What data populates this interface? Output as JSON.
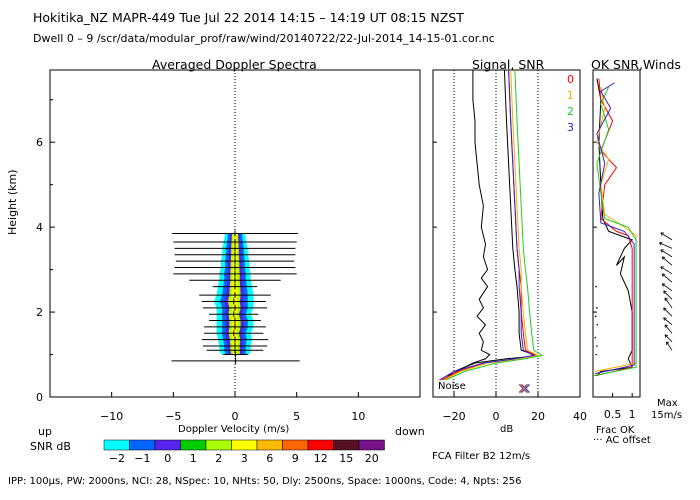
{
  "header": {
    "line1": "Hokitika_NZ   MAPR-449   Tue Jul 22 2014 14:15 – 14:19 UT 08:15 NZST",
    "line2": "Dwell   0 –  9    /scr/data/modular_prof/raw/wind/20140722/22-Jul-2014_14-15-01.cor.nc"
  },
  "footer": {
    "params": "IPP: 100µs,  PW: 2000ns,  NCI:  28,  NSpec: 10,  NHts: 50,  Dly: 2500ns,  Space: 1000ns,  Code: 4,  Npts: 256",
    "fca": "FCA Filter B2 12m/s"
  },
  "labels": {
    "up": "up",
    "down": "down",
    "snr_db": "SNR dB",
    "noise": "Noise",
    "frac_ok": "Frac OK",
    "ac_offset": "AC offset",
    "max": "Max",
    "max_speed": "15m/s",
    "ok_title": "OK",
    "snr_winds_title": "SNR,Winds",
    "signal_snr_title": "Signal, SNR",
    "db": "dB"
  },
  "colorbar": {
    "labels": [
      "−2",
      "−1",
      "0",
      "1",
      "2",
      "3",
      "6",
      "9",
      "12",
      "15",
      "20"
    ],
    "colors": [
      "#00ffff",
      "#0066ff",
      "#5522ee",
      "#00cc00",
      "#aaff00",
      "#ffff00",
      "#ffbb00",
      "#ff6600",
      "#ff0000",
      "#551122",
      "#771188"
    ]
  },
  "beam_legend": [
    {
      "label": "0",
      "color": "#ff0000"
    },
    {
      "label": "1",
      "color": "#ffaa00"
    },
    {
      "label": "2",
      "color": "#22cc22"
    },
    {
      "label": "3",
      "color": "#3322cc"
    }
  ],
  "chart_data": [
    {
      "type": "heatmap",
      "title": "Averaged Doppler Spectra",
      "xlabel": "Doppler Velocity (m/s)",
      "ylabel": "Height (km)",
      "xlim": [
        -15,
        15
      ],
      "ylim": [
        0,
        7.7
      ],
      "xticks": [
        -10,
        -5,
        0,
        5,
        10
      ],
      "yticks": [
        0,
        2,
        4,
        6
      ],
      "profile": [
        {
          "h": 0.85,
          "ext": 5.2,
          "w": 0.9,
          "c": 0.05
        },
        {
          "h": 1.0,
          "ext": 1.0,
          "w": 1.0,
          "c": 0.05
        },
        {
          "h": 1.1,
          "ext": 2.3,
          "w": 1.1,
          "c": 0.0
        },
        {
          "h": 1.2,
          "ext": 2.6,
          "w": 1.1,
          "c": 0.0
        },
        {
          "h": 1.35,
          "ext": 2.7,
          "w": 1.2,
          "c": 0.0
        },
        {
          "h": 1.5,
          "ext": 2.4,
          "w": 1.2,
          "c": -0.1
        },
        {
          "h": 1.65,
          "ext": 2.5,
          "w": 1.3,
          "c": 0.0
        },
        {
          "h": 1.8,
          "ext": 2.1,
          "w": 1.3,
          "c": 0.0
        },
        {
          "h": 1.95,
          "ext": 2.0,
          "w": 1.2,
          "c": -0.1
        },
        {
          "h": 2.1,
          "ext": 2.6,
          "w": 1.3,
          "c": 0.0
        },
        {
          "h": 2.25,
          "ext": 2.6,
          "w": 1.4,
          "c": -0.1
        },
        {
          "h": 2.4,
          "ext": 2.9,
          "w": 1.3,
          "c": 0.0
        },
        {
          "h": 2.6,
          "ext": 1.8,
          "w": 1.2,
          "c": 0.0
        },
        {
          "h": 2.75,
          "ext": 3.7,
          "w": 1.1,
          "c": 0.0
        },
        {
          "h": 2.9,
          "ext": 5.0,
          "w": 1.1,
          "c": 0.0
        },
        {
          "h": 3.05,
          "ext": 4.9,
          "w": 1.0,
          "c": 0.0
        },
        {
          "h": 3.2,
          "ext": 4.8,
          "w": 1.0,
          "c": 0.0
        },
        {
          "h": 3.35,
          "ext": 4.9,
          "w": 0.9,
          "c": 0.0
        },
        {
          "h": 3.5,
          "ext": 4.9,
          "w": 0.9,
          "c": 0.0
        },
        {
          "h": 3.65,
          "ext": 5.0,
          "w": 0.8,
          "c": 0.0
        },
        {
          "h": 3.85,
          "ext": 5.1,
          "w": 0.7,
          "c": 0.0
        }
      ]
    },
    {
      "type": "line",
      "title": "Signal, SNR",
      "xlabel": "dB",
      "xlim": [
        -30,
        40
      ],
      "ylim": [
        0,
        7.7
      ],
      "xticks": [
        -20,
        0,
        20,
        40
      ],
      "dotted_x": [
        -20,
        0,
        20
      ],
      "series": [
        {
          "color": "#000000",
          "points": [
            [
              -22,
              0.5
            ],
            [
              -15,
              0.7
            ],
            [
              -11,
              0.8
            ],
            [
              -5,
              0.9
            ],
            [
              -3,
              1.0
            ],
            [
              -7,
              1.1
            ],
            [
              -6,
              1.3
            ],
            [
              -8,
              1.5
            ],
            [
              -5,
              1.7
            ],
            [
              -9,
              1.9
            ],
            [
              -6,
              2.1
            ],
            [
              -8,
              2.3
            ],
            [
              -4,
              2.6
            ],
            [
              -7,
              2.8
            ],
            [
              -4,
              3.0
            ],
            [
              -6,
              3.3
            ],
            [
              -5,
              3.6
            ],
            [
              -7,
              4.0
            ],
            [
              -6,
              4.5
            ],
            [
              -8,
              5.0
            ],
            [
              -9,
              5.5
            ],
            [
              -10,
              6.0
            ],
            [
              -10,
              6.5
            ],
            [
              -11,
              7.0
            ],
            [
              -11,
              7.7
            ]
          ]
        },
        {
          "color": "#000000",
          "points": [
            [
              -25,
              0.4
            ],
            [
              -20,
              0.6
            ],
            [
              -10,
              0.8
            ],
            [
              5,
              0.9
            ],
            [
              16,
              0.95
            ],
            [
              18,
              1.0
            ],
            [
              12,
              1.1
            ],
            [
              11,
              1.5
            ],
            [
              11,
              2.0
            ],
            [
              10,
              2.6
            ],
            [
              9,
              3.0
            ],
            [
              8,
              3.5
            ],
            [
              7,
              4.5
            ],
            [
              6,
              5.5
            ],
            [
              5,
              6.5
            ],
            [
              4,
              7.7
            ]
          ]
        },
        {
          "color": "#ff0000",
          "points": [
            [
              -26,
              0.4
            ],
            [
              -18,
              0.6
            ],
            [
              -5,
              0.8
            ],
            [
              10,
              0.9
            ],
            [
              19,
              0.98
            ],
            [
              14,
              1.1
            ],
            [
              13,
              1.5
            ],
            [
              12,
              2.0
            ],
            [
              12,
              2.6
            ],
            [
              11,
              3.0
            ],
            [
              10,
              3.5
            ],
            [
              9,
              4.5
            ],
            [
              8,
              5.5
            ],
            [
              7,
              6.5
            ],
            [
              6,
              7.7
            ]
          ]
        },
        {
          "color": "#ffaa00",
          "points": [
            [
              -25,
              0.4
            ],
            [
              -17,
              0.6
            ],
            [
              -4,
              0.8
            ],
            [
              11,
              0.9
            ],
            [
              20,
              0.98
            ],
            [
              15,
              1.1
            ],
            [
              14,
              1.5
            ],
            [
              13,
              2.0
            ],
            [
              12,
              2.6
            ],
            [
              12,
              3.0
            ],
            [
              11,
              3.5
            ],
            [
              10,
              4.5
            ],
            [
              9,
              5.5
            ],
            [
              8,
              6.5
            ],
            [
              7,
              7.7
            ]
          ]
        },
        {
          "color": "#22cc22",
          "points": [
            [
              -24,
              0.4
            ],
            [
              -15,
              0.6
            ],
            [
              0,
              0.8
            ],
            [
              14,
              0.9
            ],
            [
              22,
              0.98
            ],
            [
              18,
              1.1
            ],
            [
              17,
              1.5
            ],
            [
              16,
              2.0
            ],
            [
              15,
              2.6
            ],
            [
              14,
              3.0
            ],
            [
              13,
              3.5
            ],
            [
              12,
              4.5
            ],
            [
              11,
              5.5
            ],
            [
              10,
              6.5
            ],
            [
              9,
              7.7
            ]
          ]
        },
        {
          "color": "#3322cc",
          "points": [
            [
              -27,
              0.4
            ],
            [
              -20,
              0.6
            ],
            [
              -6,
              0.8
            ],
            [
              9,
              0.9
            ],
            [
              18,
              0.98
            ],
            [
              13,
              1.1
            ],
            [
              12,
              1.5
            ],
            [
              12,
              2.0
            ],
            [
              11,
              2.6
            ],
            [
              11,
              3.0
            ],
            [
              10,
              3.5
            ],
            [
              9,
              4.5
            ],
            [
              8,
              5.5
            ],
            [
              7,
              6.5
            ],
            [
              6,
              7.7
            ]
          ]
        }
      ],
      "noise_markers": [
        {
          "x": 13,
          "color": "#ff0000"
        },
        {
          "x": 14,
          "color": "#3322cc"
        },
        {
          "x": 13.5,
          "color": "#888888"
        }
      ]
    },
    {
      "type": "line",
      "title": "OK SNR,Winds",
      "xlabel": "Frac OK",
      "xlim": [
        0,
        1.2
      ],
      "xticks": [
        0.5,
        1
      ],
      "ylim": [
        0,
        7.7
      ],
      "series": [
        {
          "color": "#000000",
          "points": [
            [
              0.1,
              0.5
            ],
            [
              0.2,
              0.6
            ],
            [
              1.0,
              0.7
            ],
            [
              0.9,
              0.9
            ],
            [
              1.0,
              1.1
            ],
            [
              1.0,
              1.5
            ],
            [
              1.0,
              2.0
            ],
            [
              0.9,
              2.5
            ],
            [
              0.7,
              2.9
            ],
            [
              0.8,
              3.3
            ],
            [
              0.6,
              3.1
            ],
            [
              0.8,
              3.5
            ],
            [
              1.0,
              3.7
            ],
            [
              0.4,
              3.9
            ],
            [
              0.25,
              4.2
            ],
            [
              0.2,
              5.0
            ],
            [
              0.15,
              6.0
            ],
            [
              0.2,
              7.0
            ],
            [
              0.1,
              7.5
            ]
          ]
        },
        {
          "color": "#ff0000",
          "points": [
            [
              0.05,
              0.5
            ],
            [
              1.0,
              0.7
            ],
            [
              1.0,
              2.0
            ],
            [
              1.0,
              3.5
            ],
            [
              0.9,
              3.8
            ],
            [
              0.6,
              3.9
            ],
            [
              0.2,
              4.2
            ],
            [
              0.3,
              5.0
            ],
            [
              0.6,
              5.4
            ],
            [
              0.2,
              5.8
            ],
            [
              0.5,
              6.5
            ],
            [
              0.2,
              7.0
            ],
            [
              0.15,
              7.5
            ]
          ]
        },
        {
          "color": "#ffaa00",
          "points": [
            [
              0.05,
              0.6
            ],
            [
              1.1,
              0.8
            ],
            [
              1.1,
              2.5
            ],
            [
              1.1,
              3.8
            ],
            [
              0.8,
              4.0
            ],
            [
              0.3,
              4.3
            ],
            [
              0.2,
              5.0
            ],
            [
              0.4,
              5.6
            ],
            [
              0.1,
              6.0
            ],
            [
              0.3,
              6.8
            ],
            [
              0.2,
              7.3
            ]
          ]
        },
        {
          "color": "#22cc22",
          "points": [
            [
              0.0,
              0.5
            ],
            [
              1.1,
              0.7
            ],
            [
              1.1,
              2.5
            ],
            [
              1.1,
              3.7
            ],
            [
              0.9,
              4.0
            ],
            [
              0.3,
              4.2
            ],
            [
              0.2,
              4.8
            ],
            [
              0.1,
              5.5
            ],
            [
              0.4,
              6.3
            ],
            [
              0.2,
              6.9
            ],
            [
              0.4,
              7.3
            ]
          ]
        },
        {
          "color": "#3322cc",
          "points": [
            [
              0.05,
              0.55
            ],
            [
              1.05,
              0.75
            ],
            [
              1.05,
              2.0
            ],
            [
              1.05,
              3.6
            ],
            [
              0.8,
              3.9
            ],
            [
              0.2,
              4.1
            ],
            [
              0.15,
              4.8
            ],
            [
              0.3,
              5.5
            ],
            [
              0.1,
              6.2
            ],
            [
              0.45,
              6.8
            ],
            [
              0.2,
              7.2
            ],
            [
              0.55,
              7.4
            ]
          ]
        }
      ],
      "winds": [
        {
          "h": 1.1,
          "u": 0.4,
          "v": 0.6
        },
        {
          "h": 1.3,
          "u": 0.5,
          "v": 0.5
        },
        {
          "h": 1.5,
          "u": 0.5,
          "v": 0.6
        },
        {
          "h": 1.7,
          "u": 0.6,
          "v": 0.5
        },
        {
          "h": 1.9,
          "u": 0.6,
          "v": 0.6
        },
        {
          "h": 2.1,
          "u": 0.5,
          "v": 0.7
        },
        {
          "h": 2.3,
          "u": 0.6,
          "v": 0.6
        },
        {
          "h": 2.5,
          "u": 0.7,
          "v": 0.5
        },
        {
          "h": 2.7,
          "u": 0.7,
          "v": 0.6
        },
        {
          "h": 2.9,
          "u": 0.8,
          "v": 0.5
        },
        {
          "h": 3.1,
          "u": 0.7,
          "v": 0.6
        },
        {
          "h": 3.3,
          "u": 0.8,
          "v": 0.5
        },
        {
          "h": 3.5,
          "u": 0.9,
          "v": 0.4
        },
        {
          "h": 3.7,
          "u": 0.8,
          "v": 0.5
        }
      ],
      "ac_offset": [
        {
          "h": 1.0,
          "x": 0.08
        },
        {
          "h": 1.2,
          "x": 0.1
        },
        {
          "h": 1.4,
          "x": 0.06
        },
        {
          "h": 1.7,
          "x": 0.11
        },
        {
          "h": 1.9,
          "x": 0.07
        },
        {
          "h": 2.1,
          "x": 0.1
        },
        {
          "h": 2.6,
          "x": 0.08
        }
      ]
    }
  ]
}
